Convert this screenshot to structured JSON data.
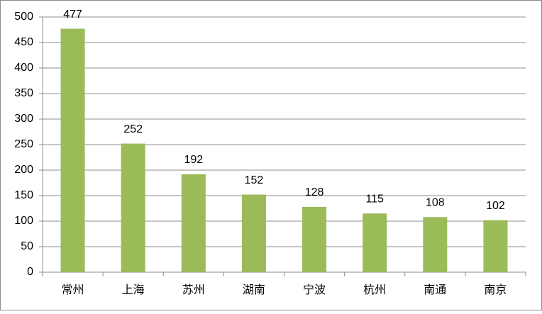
{
  "chart_data": {
    "type": "bar",
    "categories": [
      "常州",
      "上海",
      "苏州",
      "湖南",
      "宁波",
      "杭州",
      "南通",
      "南京"
    ],
    "values": [
      477,
      252,
      192,
      152,
      128,
      115,
      108,
      102
    ],
    "color": "#9bbb59",
    "ylim": [
      0,
      500
    ],
    "yticks": [
      0,
      50,
      100,
      150,
      200,
      250,
      300,
      350,
      400,
      450,
      500
    ],
    "grid": true
  }
}
